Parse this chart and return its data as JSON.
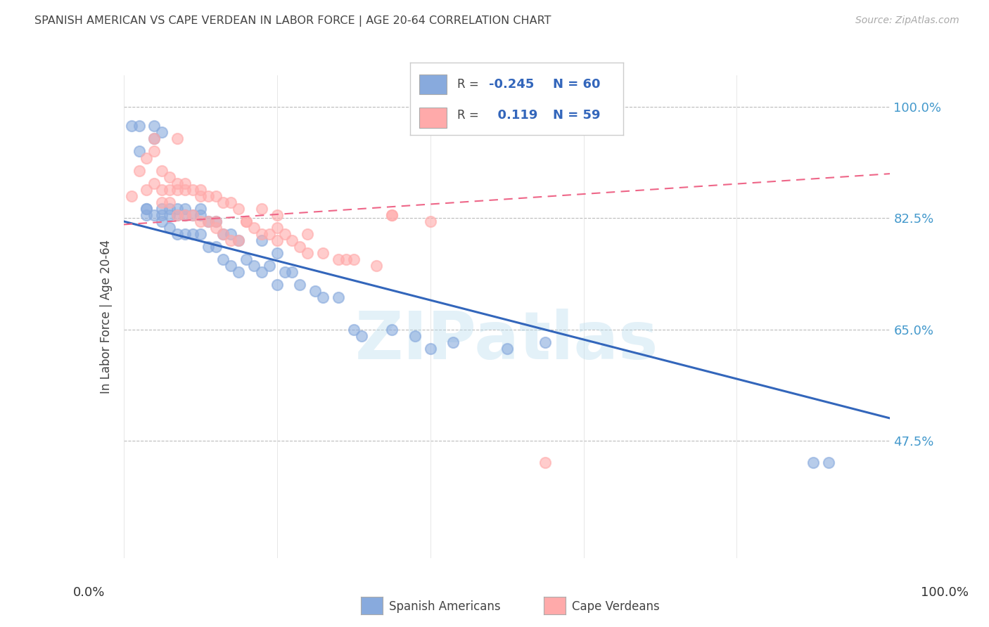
{
  "title": "SPANISH AMERICAN VS CAPE VERDEAN IN LABOR FORCE | AGE 20-64 CORRELATION CHART",
  "source": "Source: ZipAtlas.com",
  "ylabel": "In Labor Force | Age 20-64",
  "ytick_vals": [
    0.475,
    0.65,
    0.825,
    1.0
  ],
  "ytick_labels": [
    "47.5%",
    "65.0%",
    "82.5%",
    "100.0%"
  ],
  "xlim": [
    0.0,
    1.0
  ],
  "ylim": [
    0.29,
    1.05
  ],
  "blue_scatter_color": "#88AADD",
  "pink_scatter_color": "#FFAAAA",
  "blue_line_color": "#3366BB",
  "pink_line_color": "#EE6688",
  "watermark": "ZIPatlas",
  "legend_r_blue": "-0.245",
  "legend_n_blue": "60",
  "legend_r_pink": "0.119",
  "legend_n_pink": "59",
  "blue_scatter_x": [
    0.01,
    0.02,
    0.02,
    0.03,
    0.03,
    0.03,
    0.04,
    0.04,
    0.04,
    0.05,
    0.05,
    0.05,
    0.05,
    0.06,
    0.06,
    0.06,
    0.07,
    0.07,
    0.07,
    0.08,
    0.08,
    0.08,
    0.09,
    0.09,
    0.1,
    0.1,
    0.1,
    0.11,
    0.11,
    0.12,
    0.12,
    0.13,
    0.13,
    0.14,
    0.14,
    0.15,
    0.15,
    0.16,
    0.17,
    0.18,
    0.18,
    0.19,
    0.2,
    0.2,
    0.21,
    0.22,
    0.23,
    0.25,
    0.26,
    0.28,
    0.3,
    0.31,
    0.35,
    0.38,
    0.4,
    0.43,
    0.5,
    0.55,
    0.9,
    0.92
  ],
  "blue_scatter_y": [
    0.97,
    0.93,
    0.97,
    0.84,
    0.84,
    0.83,
    0.95,
    0.97,
    0.83,
    0.96,
    0.84,
    0.83,
    0.82,
    0.84,
    0.83,
    0.81,
    0.84,
    0.83,
    0.8,
    0.84,
    0.83,
    0.8,
    0.83,
    0.8,
    0.84,
    0.83,
    0.8,
    0.82,
    0.78,
    0.82,
    0.78,
    0.8,
    0.76,
    0.8,
    0.75,
    0.79,
    0.74,
    0.76,
    0.75,
    0.79,
    0.74,
    0.75,
    0.77,
    0.72,
    0.74,
    0.74,
    0.72,
    0.71,
    0.7,
    0.7,
    0.65,
    0.64,
    0.65,
    0.64,
    0.62,
    0.63,
    0.62,
    0.63,
    0.44,
    0.44
  ],
  "pink_scatter_x": [
    0.01,
    0.02,
    0.03,
    0.03,
    0.04,
    0.04,
    0.05,
    0.05,
    0.05,
    0.06,
    0.06,
    0.06,
    0.07,
    0.07,
    0.07,
    0.08,
    0.08,
    0.08,
    0.09,
    0.09,
    0.1,
    0.1,
    0.1,
    0.11,
    0.11,
    0.12,
    0.12,
    0.13,
    0.13,
    0.14,
    0.14,
    0.15,
    0.15,
    0.16,
    0.17,
    0.18,
    0.18,
    0.19,
    0.2,
    0.2,
    0.21,
    0.22,
    0.23,
    0.24,
    0.26,
    0.28,
    0.29,
    0.3,
    0.33,
    0.35,
    0.04,
    0.07,
    0.12,
    0.16,
    0.2,
    0.24,
    0.35,
    0.4,
    0.55
  ],
  "pink_scatter_y": [
    0.86,
    0.9,
    0.92,
    0.87,
    0.93,
    0.88,
    0.9,
    0.87,
    0.85,
    0.89,
    0.87,
    0.85,
    0.88,
    0.87,
    0.83,
    0.88,
    0.87,
    0.83,
    0.87,
    0.83,
    0.87,
    0.86,
    0.82,
    0.86,
    0.82,
    0.86,
    0.82,
    0.85,
    0.8,
    0.85,
    0.79,
    0.84,
    0.79,
    0.82,
    0.81,
    0.84,
    0.8,
    0.8,
    0.83,
    0.79,
    0.8,
    0.79,
    0.78,
    0.77,
    0.77,
    0.76,
    0.76,
    0.76,
    0.75,
    0.83,
    0.95,
    0.95,
    0.81,
    0.82,
    0.81,
    0.8,
    0.83,
    0.82,
    0.44
  ],
  "blue_trend": [
    0.0,
    1.0,
    0.82,
    0.51
  ],
  "pink_trend": [
    0.0,
    1.0,
    0.815,
    0.895
  ]
}
